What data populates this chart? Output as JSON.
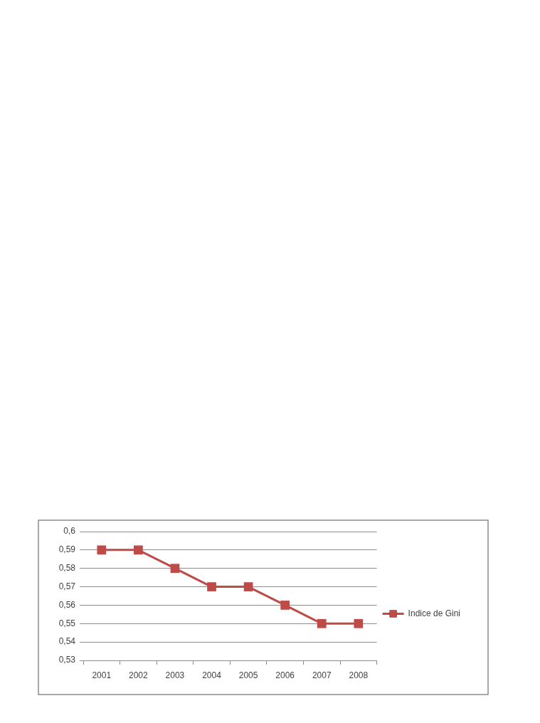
{
  "chart_data": {
    "type": "line",
    "categories": [
      "2001",
      "2002",
      "2003",
      "2004",
      "2005",
      "2006",
      "2007",
      "2008"
    ],
    "series": [
      {
        "name": "Indice de Gini",
        "color": "#be4b48",
        "values": [
          0.59,
          0.59,
          0.58,
          0.57,
          0.57,
          0.56,
          0.55,
          0.55
        ]
      }
    ],
    "ylim": [
      0.53,
      0.6
    ],
    "yticks": [
      {
        "value": 0.53,
        "label": "0,53"
      },
      {
        "value": 0.54,
        "label": "0,54"
      },
      {
        "value": 0.55,
        "label": "0,55"
      },
      {
        "value": 0.56,
        "label": "0,56"
      },
      {
        "value": 0.57,
        "label": "0,57"
      },
      {
        "value": 0.58,
        "label": "0,58"
      },
      {
        "value": 0.59,
        "label": "0,59"
      },
      {
        "value": 0.6,
        "label": "0,6"
      }
    ],
    "grid": "y",
    "legend": "right",
    "marker": "square",
    "line_style": "solid"
  }
}
